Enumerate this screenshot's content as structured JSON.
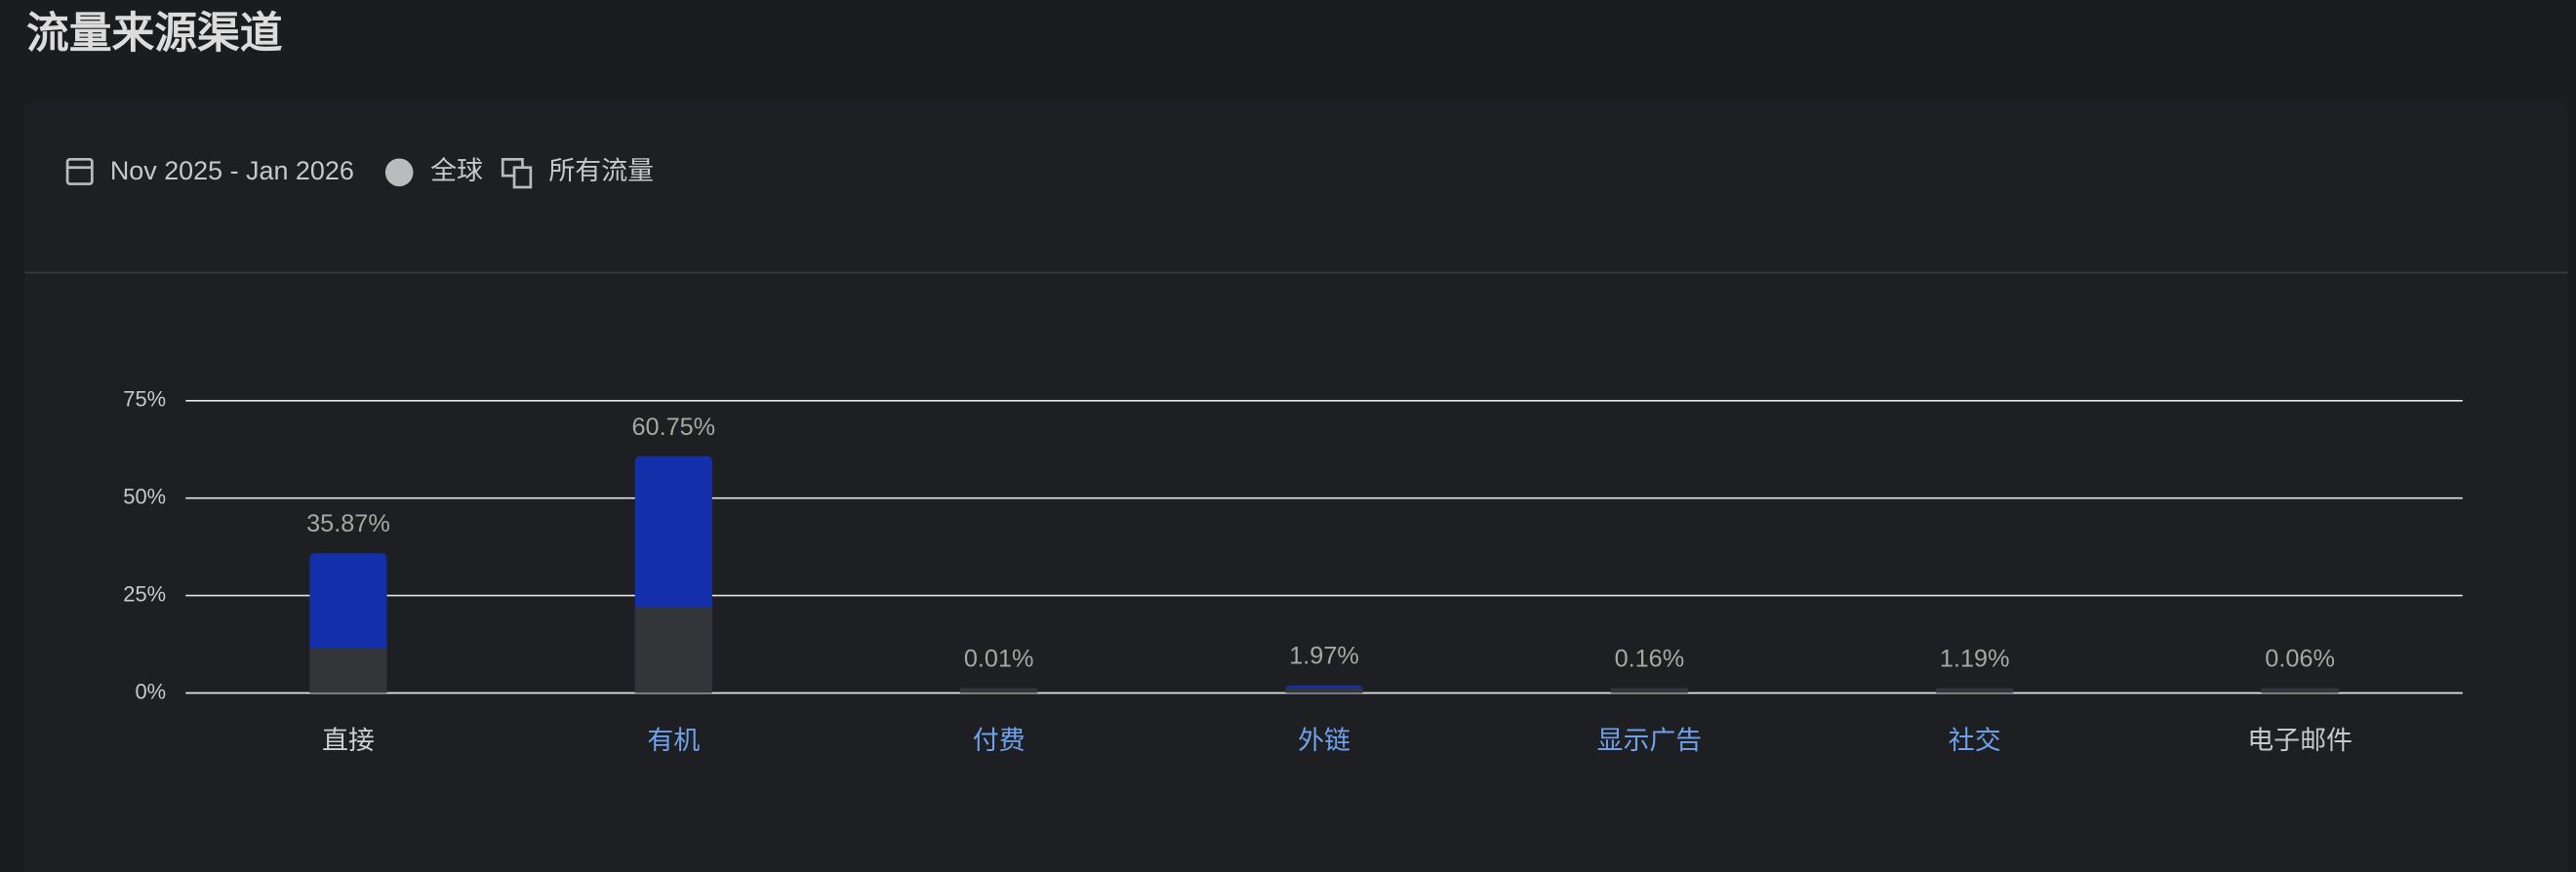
{
  "header": {
    "title": "流量来源渠道"
  },
  "filters": {
    "date_range": "Nov 2025 - Jan 2026",
    "region": "全球",
    "traffic": "所有流量"
  },
  "chart_data": {
    "type": "bar",
    "categories": [
      "直接",
      "有机",
      "付费",
      "外链",
      "显示广告",
      "社交",
      "电子邮件"
    ],
    "category_colors": [
      "#d0d0d0",
      "#6fa1ec",
      "#6fa1ec",
      "#6fa1ec",
      "#6fa1ec",
      "#6fa1ec",
      "#c8c8c8"
    ],
    "series": [
      {
        "color": "#1330aa",
        "values": [
          35.87,
          60.75,
          0.01,
          1.97,
          0.16,
          1.19,
          0.06
        ],
        "value_labels": [
          "35.87%",
          "60.75%",
          "0.01%",
          "1.97%",
          "0.16%",
          "1.19%",
          "0.06%"
        ]
      },
      {
        "color": "#333538",
        "values": [
          11.5,
          22,
          0.01,
          0.5,
          0.16,
          1.19,
          0.06
        ]
      }
    ],
    "ylim": [
      0,
      75
    ],
    "yticks": [
      {
        "value": 0,
        "label": "0%"
      },
      {
        "value": 25,
        "label": "25%"
      },
      {
        "value": 50,
        "label": "50%"
      },
      {
        "value": 75,
        "label": "75%"
      }
    ],
    "grid": true
  }
}
